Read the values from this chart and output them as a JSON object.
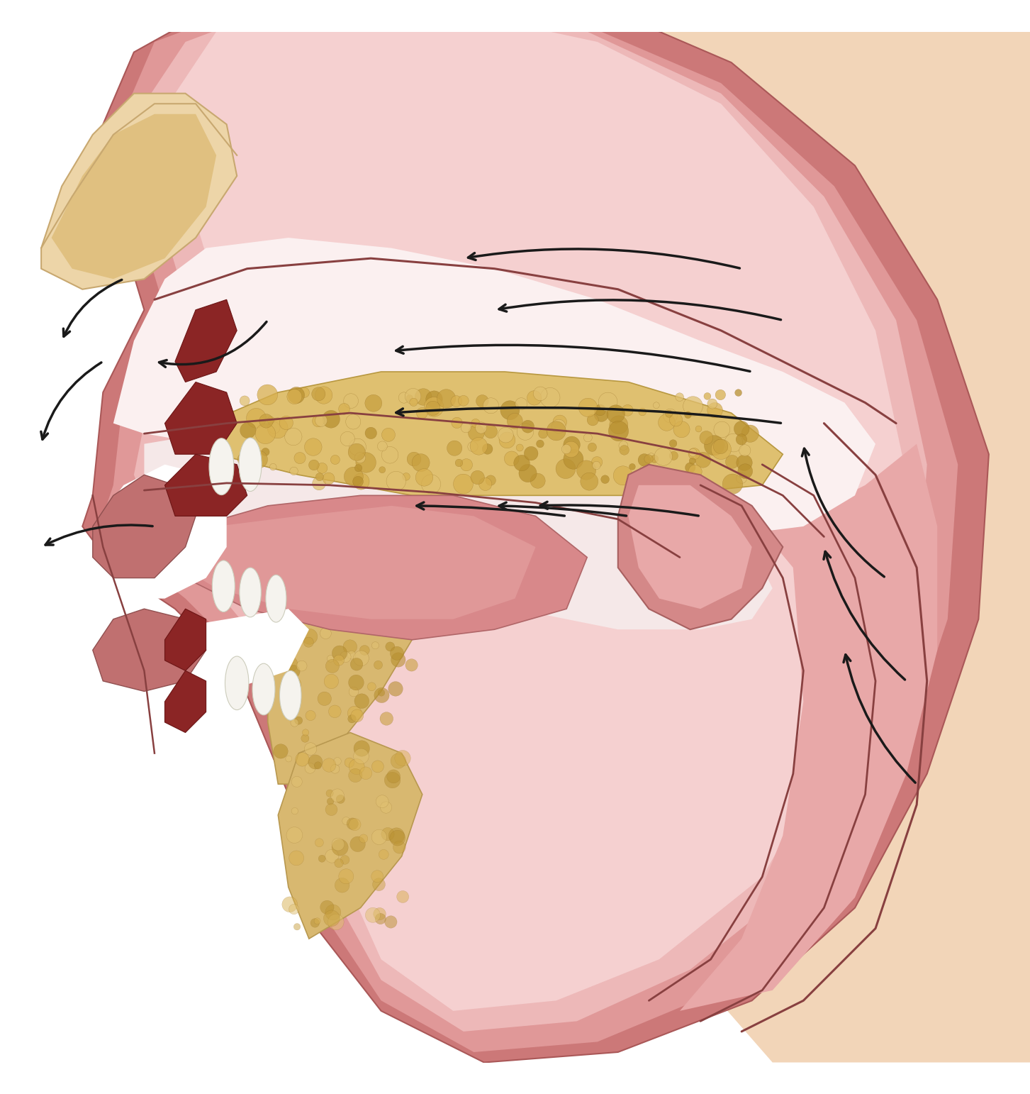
{
  "bg_color": "#FFFFFF",
  "outer_bg_peach": "#F2D5B8",
  "head_dark": "#CC7878",
  "head_mid": "#E09898",
  "head_light": "#EDB8B8",
  "head_lightest": "#F5D0D0",
  "nasal_space": "#FBF0F0",
  "nose_ext_color": "#EDD5A8",
  "nose_ext_border": "#C8A870",
  "hard_palate_color": "#DFC070",
  "hard_palate_border": "#B89840",
  "bone_dots": [
    "#C8A040",
    "#D8B050",
    "#B89030",
    "#E0C070"
  ],
  "turbinate_color": "#8B2525",
  "turbinate_border": "#6B1515",
  "tongue_color": "#D8888A",
  "tongue_border": "#B06668",
  "soft_palate_color": "#D48888",
  "soft_palate_border": "#A86060",
  "pharynx_line": "#B06868",
  "outline_color": "#884040",
  "teeth_color": "#F5F3EE",
  "teeth_border": "#CCCCBB",
  "arrow_color": "#1A1A1A",
  "arrow_lw": 2.5,
  "lip_color": "#C07070",
  "lip_border": "#905050",
  "mand_color": "#D8B870",
  "mand_border": "#B89850"
}
